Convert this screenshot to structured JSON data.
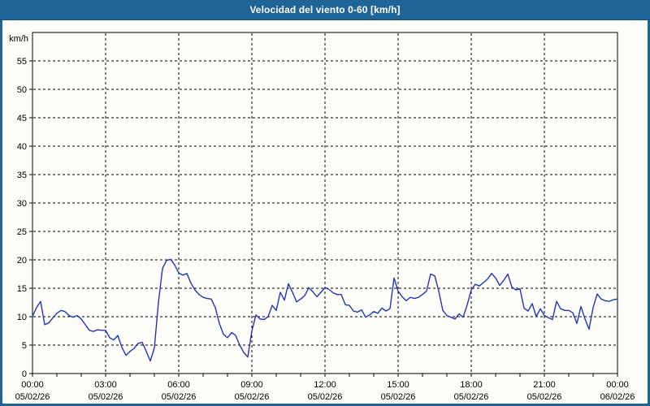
{
  "window": {
    "title": "Velocidad del viento 0-60 [km/h]"
  },
  "colors": {
    "titlebar": "#1f6496",
    "frame": "#1f6496",
    "plot_background": "#fdfdfa",
    "axis": "#000000",
    "grid": "#000000",
    "series_line": "#2236b4",
    "label_text": "#000000",
    "title_text": "#ffffff"
  },
  "chart_data": {
    "type": "line",
    "title": "Velocidad del viento 0-60 [km/h]",
    "ylabel": "km/h",
    "xlabel": "",
    "ylim": [
      0,
      60
    ],
    "ytick_step": 5,
    "ytick_labels": [
      55,
      50,
      45,
      40,
      35,
      30,
      25,
      20,
      15,
      10,
      5,
      0
    ],
    "grid": "dashed",
    "x_total_minutes": 1440,
    "minor_xtick_minutes": 60,
    "xticks": [
      {
        "minutes": 0,
        "time": "00:00",
        "date": "05/02/26"
      },
      {
        "minutes": 180,
        "time": "03:00",
        "date": "05/02/26"
      },
      {
        "minutes": 360,
        "time": "06:00",
        "date": "05/02/26"
      },
      {
        "minutes": 540,
        "time": "09:00",
        "date": "05/02/26"
      },
      {
        "minutes": 720,
        "time": "12:00",
        "date": "05/02/26"
      },
      {
        "minutes": 900,
        "time": "15:00",
        "date": "05/02/26"
      },
      {
        "minutes": 1080,
        "time": "18:00",
        "date": "05/02/26"
      },
      {
        "minutes": 1260,
        "time": "21:00",
        "date": "05/02/26"
      },
      {
        "minutes": 1440,
        "time": "00:00",
        "date": "06/02/26"
      }
    ],
    "series": [
      {
        "name": "Velocidad del viento",
        "unit": "km/h",
        "color": "#2236b4",
        "start_minute": 0,
        "sample_interval_minutes": 10,
        "values": [
          10.1,
          11.6,
          12.7,
          8.6,
          8.9,
          9.8,
          10.6,
          11.1,
          10.9,
          10.2,
          9.9,
          10.2,
          9.6,
          8.6,
          7.6,
          7.4,
          7.7,
          7.6,
          7.6,
          6.3,
          5.9,
          6.7,
          4.6,
          3.2,
          3.9,
          4.4,
          5.3,
          5.5,
          3.9,
          2.2,
          4.5,
          12.5,
          18.5,
          19.9,
          20.1,
          19.1,
          17.7,
          17.3,
          17.6,
          15.9,
          14.7,
          13.9,
          13.4,
          13.2,
          13.1,
          11.6,
          8.8,
          6.9,
          6.3,
          7.2,
          6.7,
          5.0,
          3.7,
          2.9,
          7.5,
          10.3,
          9.6,
          9.5,
          10.0,
          12.0,
          11.1,
          14.3,
          12.9,
          15.8,
          14.3,
          12.6,
          13.1,
          13.7,
          15.1,
          14.4,
          13.5,
          14.3,
          15.1,
          14.8,
          14.2,
          13.9,
          13.9,
          12.1,
          12.0,
          11.0,
          10.8,
          11.2,
          9.9,
          10.3,
          10.9,
          10.6,
          11.5,
          11.0,
          11.4,
          16.8,
          14.5,
          13.5,
          12.8,
          13.4,
          13.2,
          13.4,
          13.9,
          14.5,
          17.5,
          17.2,
          14.5,
          11.1,
          10.2,
          9.9,
          9.6,
          10.5,
          9.9,
          12.1,
          14.7,
          15.7,
          15.4,
          16.0,
          16.6,
          17.6,
          16.8,
          15.5,
          16.4,
          17.5,
          15.2,
          14.7,
          14.9,
          11.5,
          11.0,
          12.3,
          10.0,
          11.4,
          10.2,
          9.8,
          9.5,
          12.7,
          11.4,
          11.1,
          11.1,
          10.7,
          8.8,
          11.8,
          9.6,
          7.8,
          11.6,
          14.0,
          13.1,
          12.8,
          12.7,
          13.0,
          13.1
        ]
      }
    ]
  }
}
